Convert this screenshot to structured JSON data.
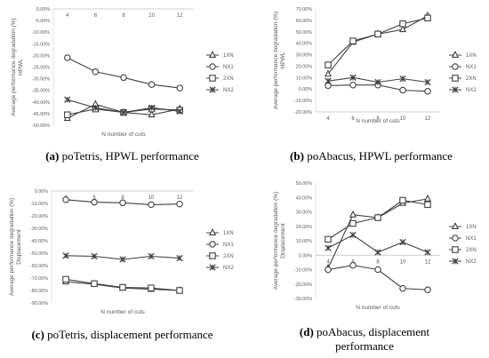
{
  "chart_data": [
    {
      "type": "line",
      "panel": "a",
      "caption": {
        "letter": "(a)",
        "text": "poTetris, HPWL performance"
      },
      "xlabel": "N number of cuts",
      "ylabel": "Average performance degradation (%)",
      "ylabel2": "HPWL",
      "x": [
        4,
        6,
        8,
        10,
        12
      ],
      "ylim": [
        -50,
        0
      ],
      "ytick_step": 5,
      "ytick_labels": [
        "0.00%",
        "-5.00%",
        "-10.00%",
        "-15.00%",
        "-20.00%",
        "-25.00%",
        "-30.00%",
        "-35.00%",
        "-40.00%",
        "-45.00%",
        "-50.00%"
      ],
      "xaxis_at": "top",
      "legend": "right",
      "series": [
        {
          "name": "1XN",
          "marker": "triangle",
          "values": [
            -47,
            -41,
            -44.5,
            -45.5,
            -43
          ]
        },
        {
          "name": "NX1",
          "marker": "circle",
          "values": [
            -21,
            -27,
            -29.5,
            -32.5,
            -34
          ]
        },
        {
          "name": "2XN",
          "marker": "square",
          "values": [
            -45.5,
            -43,
            -44.5,
            -43,
            -43.5
          ]
        },
        {
          "name": "NX2",
          "marker": "x",
          "values": [
            -39,
            -42.5,
            -44.5,
            -42.5,
            -44
          ]
        }
      ]
    },
    {
      "type": "line",
      "panel": "b",
      "caption": {
        "letter": "(b)",
        "text": "poAbacus, HPWL performance"
      },
      "xlabel": "N number of cuts",
      "ylabel": "Average performance degradation (%)",
      "ylabel2": "HPWL",
      "x": [
        4,
        6,
        8,
        10,
        12
      ],
      "ylim": [
        -20,
        70
      ],
      "ytick_step": 10,
      "ytick_labels": [
        "70.00%",
        "60.00%",
        "50.00%",
        "40.00%",
        "30.00%",
        "20.00%",
        "10.00%",
        "0.00%",
        "-10.00%",
        "-20.00%"
      ],
      "xaxis_at": "bottom",
      "legend": "right",
      "series": [
        {
          "name": "1XN",
          "marker": "triangle",
          "values": [
            13,
            41,
            48,
            52,
            64
          ]
        },
        {
          "name": "NX1",
          "marker": "circle",
          "values": [
            3,
            3.5,
            3.5,
            -1,
            -2
          ]
        },
        {
          "name": "2XN",
          "marker": "square",
          "values": [
            21,
            42,
            48,
            57,
            62
          ]
        },
        {
          "name": "NX2",
          "marker": "x",
          "values": [
            7,
            10,
            6,
            9,
            6
          ]
        }
      ]
    },
    {
      "type": "line",
      "panel": "c",
      "caption": {
        "letter": "(c)",
        "text": "poTetris, displacement performance"
      },
      "xlabel": "N number of cuts",
      "ylabel": "Average performance degradation (%)",
      "ylabel2": "Displacement",
      "x": [
        4,
        6,
        8,
        10,
        12
      ],
      "ylim": [
        -90,
        0
      ],
      "ytick_step": 10,
      "ytick_labels": [
        "0.00%",
        "-10.00%",
        "-20.00%",
        "-30.00%",
        "-40.00%",
        "-50.00%",
        "-60.00%",
        "-70.00%",
        "-80.00%",
        "-90.00%"
      ],
      "xaxis_at": "top",
      "legend": "right",
      "series": [
        {
          "name": "1XN",
          "marker": "triangle",
          "values": [
            -73,
            -75,
            -78,
            -79,
            -80
          ]
        },
        {
          "name": "NX1",
          "marker": "circle",
          "values": [
            -7,
            -9,
            -9.5,
            -11,
            -10.5
          ]
        },
        {
          "name": "2XN",
          "marker": "square",
          "values": [
            -71,
            -74.5,
            -77.5,
            -78,
            -80
          ]
        },
        {
          "name": "NX2",
          "marker": "x",
          "values": [
            -52,
            -52.5,
            -55,
            -52.5,
            -54
          ]
        }
      ]
    },
    {
      "type": "line",
      "panel": "d",
      "caption": {
        "letter": "(d)",
        "text": "poAbacus, displacement",
        "text2": "performance"
      },
      "xlabel": "N number of cuts",
      "ylabel": "Average performance degradation (%)",
      "ylabel2": "Displacement",
      "x": [
        4,
        6,
        8,
        10,
        12
      ],
      "ylim": [
        -30,
        50
      ],
      "ytick_step": 10,
      "ytick_labels": [
        "50.00%",
        "40.00%",
        "30.00%",
        "20.00%",
        "10.00%",
        "0.00%",
        "-10.00%",
        "-20.00%",
        "-30.00%"
      ],
      "xaxis_at": "zero",
      "legend": "right",
      "series": [
        {
          "name": "1XN",
          "marker": "triangle",
          "values": [
            -9,
            28,
            26,
            36,
            39
          ]
        },
        {
          "name": "NX1",
          "marker": "circle",
          "values": [
            -10,
            -7,
            -10,
            -23,
            -24
          ]
        },
        {
          "name": "2XN",
          "marker": "square",
          "values": [
            11,
            22,
            26,
            38,
            35
          ]
        },
        {
          "name": "NX2",
          "marker": "x",
          "values": [
            5,
            14,
            2,
            9,
            2
          ]
        }
      ]
    }
  ]
}
